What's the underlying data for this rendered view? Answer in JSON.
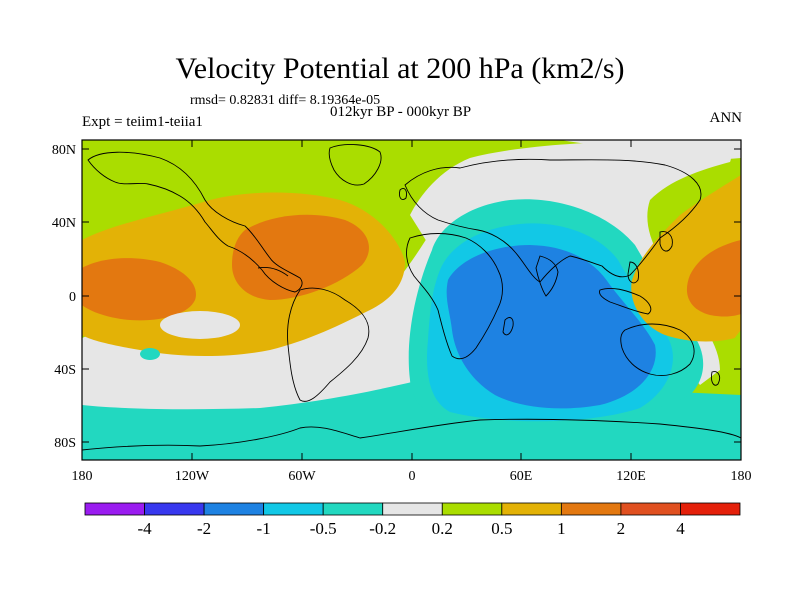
{
  "title": "Velocity Potential at 200 hPa (km2/s)",
  "stats": "rmsd= 0.82831 diff= 8.19364e-05",
  "period": "012kyr BP - 000kyr BP",
  "experiment": "Expt = teiim1-teiia1",
  "season": "ANN",
  "map": {
    "lat_ticks": [
      "80N",
      "40N",
      "0",
      "40S",
      "80S"
    ],
    "lon_ticks": [
      "180",
      "120W",
      "60W",
      "0",
      "60E",
      "120E",
      "180"
    ]
  },
  "colorbar": {
    "labels": [
      "-4",
      "-2",
      "-1",
      "-0.5",
      "-0.2",
      "0.2",
      "0.5",
      "1",
      "2",
      "4"
    ],
    "colors": [
      "#9a1cf0",
      "#3838ee",
      "#1e82e2",
      "#12c8e6",
      "#22d8c0",
      "#e6e6e6",
      "#aadd00",
      "#e3b206",
      "#e37810",
      "#e05020",
      "#e4200a"
    ]
  },
  "field_colors": {
    "lt_-1": "#1e82e2",
    "-1_-0.5": "#12c8e6",
    "-0.5_-0.2": "#22d8c0",
    "-0.2_0.2": "#e6e6e6",
    "0.2_0.5": "#aadd00",
    "0.5_1": "#e3b206",
    "1_2": "#e37810"
  }
}
